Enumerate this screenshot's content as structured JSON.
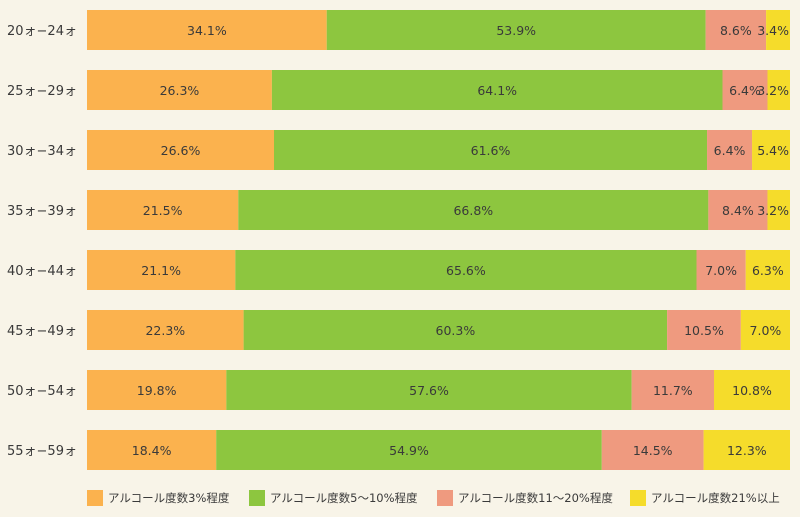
{
  "chart_data": {
    "type": "bar",
    "orientation": "horizontal",
    "stacked": true,
    "normalized": true,
    "categories": [
      "20ォ−24ォ",
      "25ォ−29ォ",
      "30ォ−34ォ",
      "35ォ−39ォ",
      "40ォ−44ォ",
      "45ォ−49ォ",
      "50ォ−54ォ",
      "55ォ−59ォ"
    ],
    "series": [
      {
        "name": "アルコール度数3%程度",
        "color": "#fbb24e",
        "values": [
          34.1,
          26.3,
          26.6,
          21.5,
          21.1,
          22.3,
          19.8,
          18.4
        ]
      },
      {
        "name": "アルコール度数5〜10%程度",
        "color": "#8dc63f",
        "values": [
          53.9,
          64.1,
          61.6,
          66.8,
          65.6,
          60.3,
          57.6,
          54.9
        ]
      },
      {
        "name": "アルコール度数11〜20%程度",
        "color": "#ef9a7f",
        "values": [
          8.6,
          6.4,
          6.4,
          8.4,
          7.0,
          10.5,
          11.7,
          14.5
        ]
      },
      {
        "name": "アルコール度数21%以上",
        "color": "#f5dc2b",
        "values": [
          3.4,
          3.2,
          5.4,
          3.2,
          6.3,
          7.0,
          10.8,
          12.3
        ]
      }
    ],
    "value_suffix": "%",
    "legend_position": "bottom",
    "grid": false
  }
}
